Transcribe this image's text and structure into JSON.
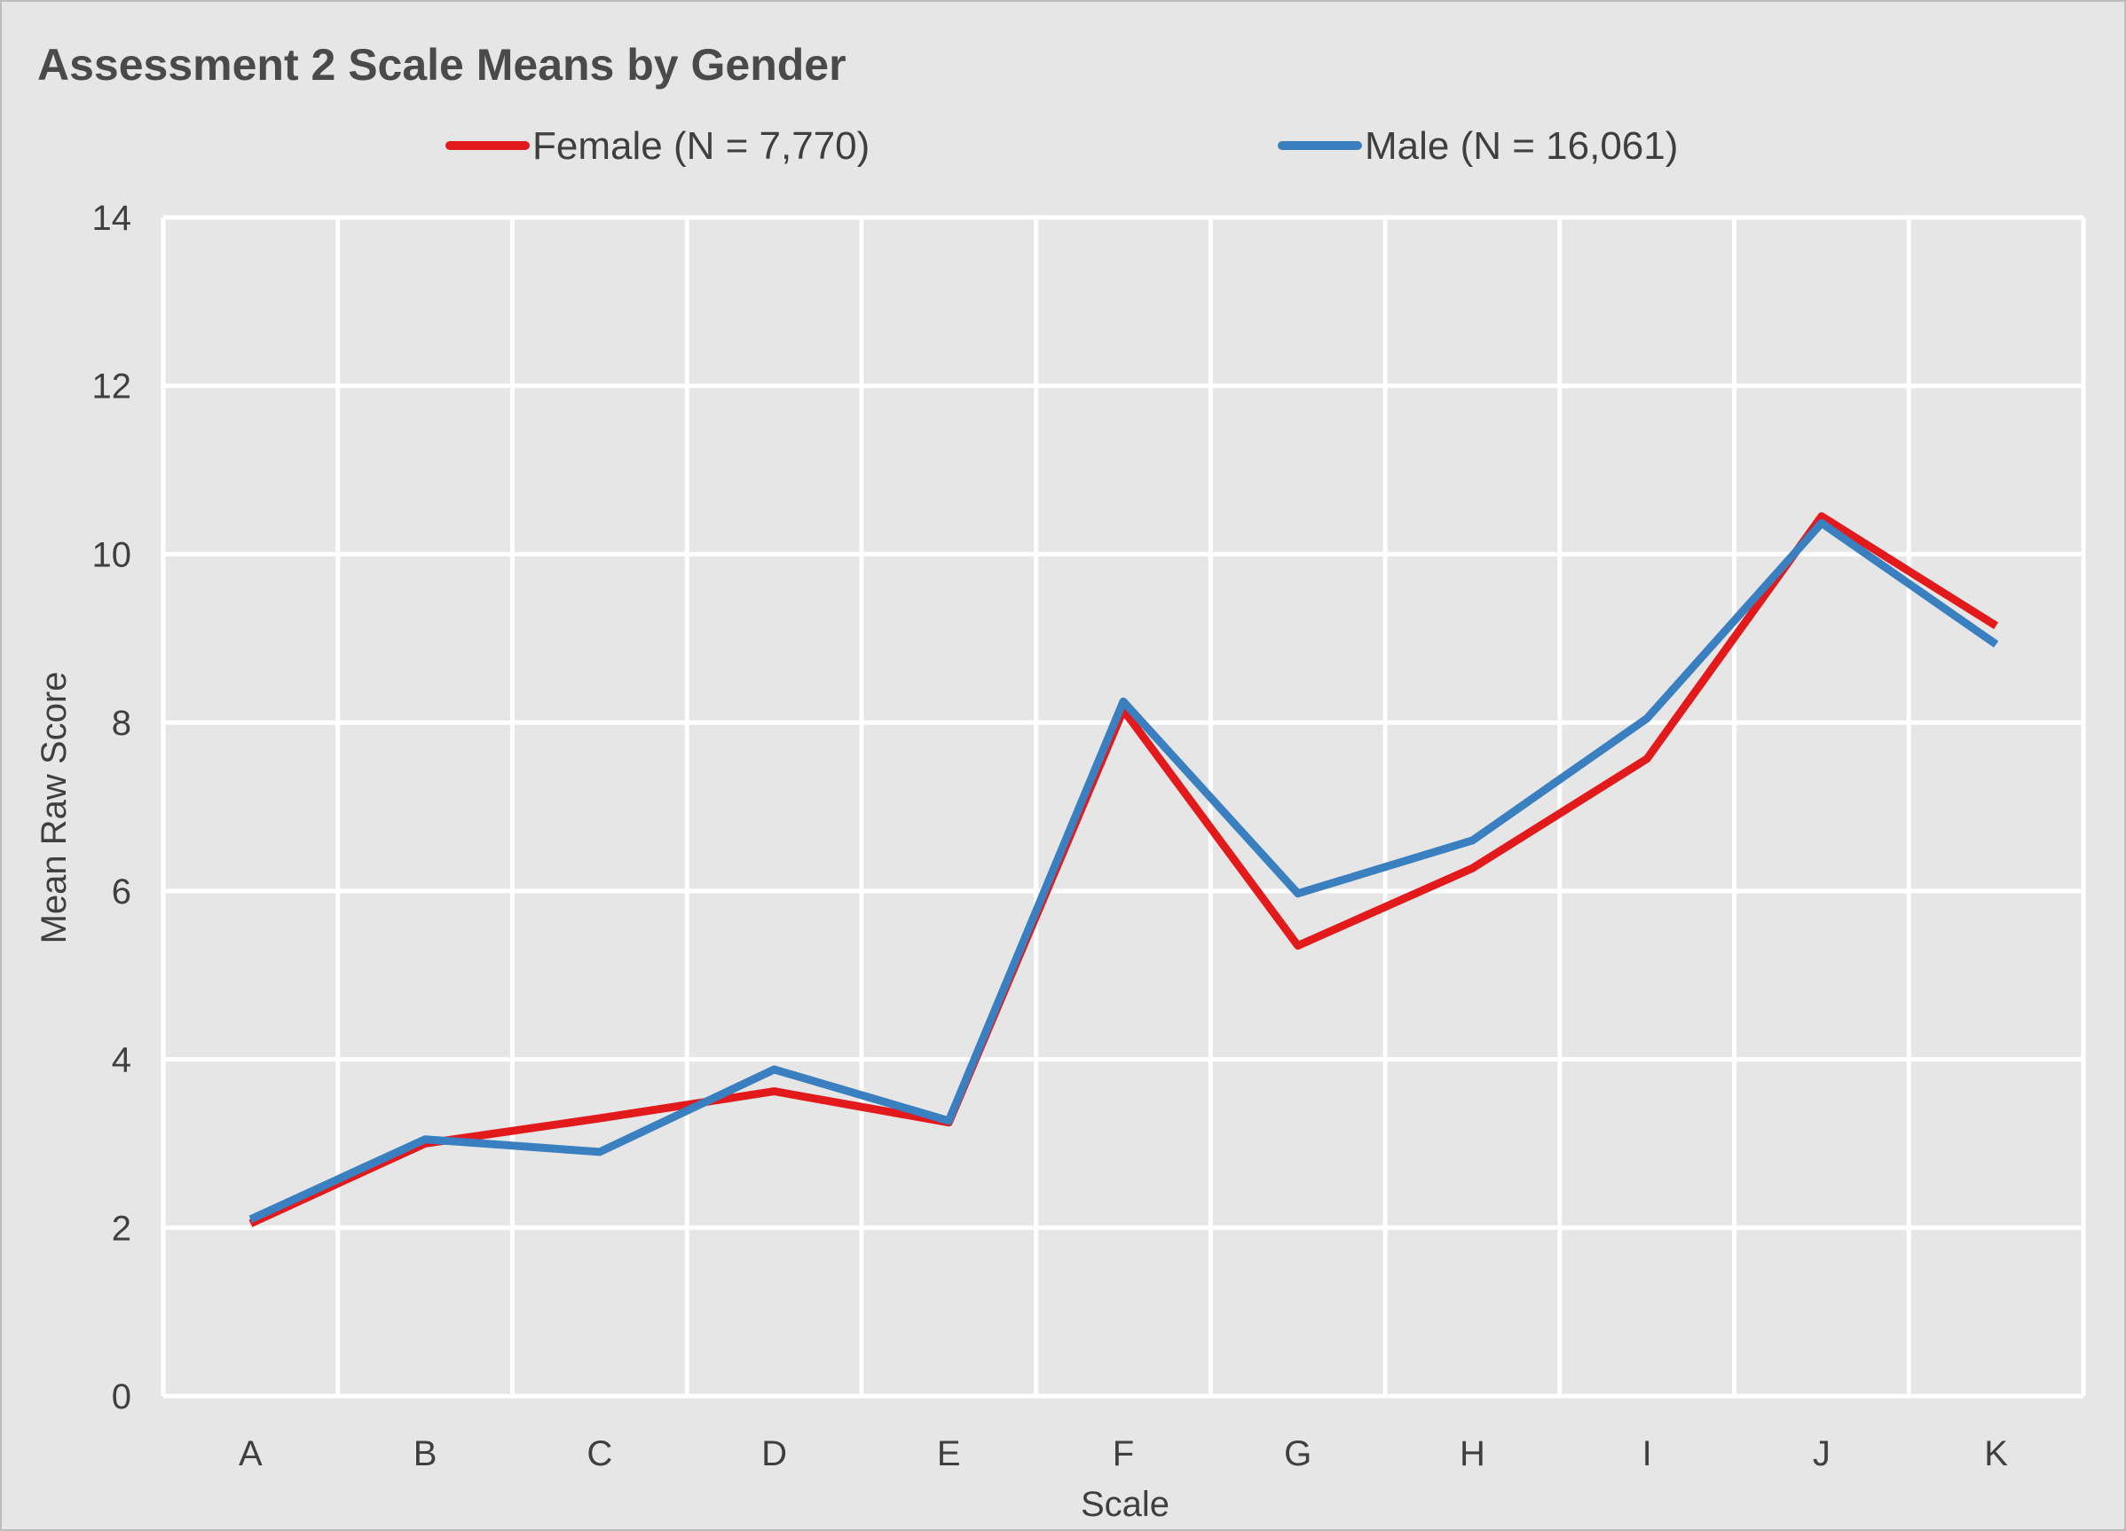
{
  "chart_data": {
    "type": "line",
    "title": "Assessment 2 Scale Means by Gender",
    "xlabel": "Scale",
    "ylabel": "Mean Raw Score",
    "categories": [
      "A",
      "B",
      "C",
      "D",
      "E",
      "F",
      "G",
      "H",
      "I",
      "J",
      "K"
    ],
    "ylim": [
      0,
      14
    ],
    "yticks": [
      "0",
      "2",
      "4",
      "6",
      "8",
      "10",
      "12",
      "14"
    ],
    "grid": true,
    "legend_position": "top",
    "series": [
      {
        "name": "Female (N = 7,770)",
        "color": "#e31a1c",
        "values": [
          2.05,
          3.0,
          3.3,
          3.62,
          3.25,
          8.15,
          5.35,
          6.27,
          7.57,
          10.45,
          9.15
        ]
      },
      {
        "name": "Male (N = 16,061)",
        "color": "#3a7fbf",
        "values": [
          2.1,
          3.05,
          2.9,
          3.88,
          3.27,
          8.25,
          5.97,
          6.6,
          8.05,
          10.37,
          8.93
        ]
      }
    ]
  }
}
